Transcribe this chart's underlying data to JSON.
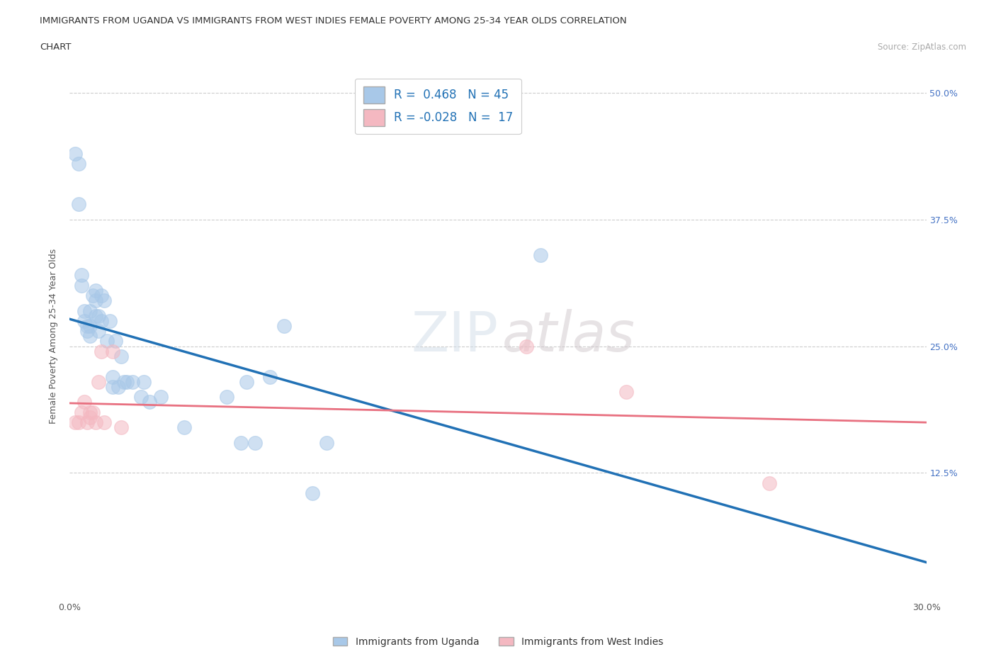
{
  "title_line1": "IMMIGRANTS FROM UGANDA VS IMMIGRANTS FROM WEST INDIES FEMALE POVERTY AMONG 25-34 YEAR OLDS CORRELATION",
  "title_line2": "CHART",
  "source": "Source: ZipAtlas.com",
  "ylabel": "Female Poverty Among 25-34 Year Olds",
  "xlim": [
    0.0,
    0.3
  ],
  "ylim": [
    0.0,
    0.52
  ],
  "xticks": [
    0.0,
    0.05,
    0.1,
    0.15,
    0.2,
    0.25,
    0.3
  ],
  "xticklabels_show": {
    "0.0": "0.0%",
    "0.30": "30.0%"
  },
  "yticks": [
    0.0,
    0.125,
    0.25,
    0.375,
    0.5
  ],
  "ytick_labels": {
    "0.0": "",
    "0.125": "12.5%",
    "0.25": "25.0%",
    "0.375": "37.5%",
    "0.5": "50.0%"
  },
  "uganda_color": "#a8c8e8",
  "uganda_color_line": "#2171b5",
  "west_indies_color": "#f4b8c1",
  "west_indies_color_line": "#e87080",
  "R_uganda": 0.468,
  "N_uganda": 45,
  "R_west_indies": -0.028,
  "N_west_indies": 17,
  "legend_label_uganda": "Immigrants from Uganda",
  "legend_label_west_indies": "Immigrants from West Indies",
  "watermark": "ZIPatlas",
  "uganda_x": [
    0.002,
    0.003,
    0.003,
    0.004,
    0.004,
    0.005,
    0.005,
    0.006,
    0.006,
    0.007,
    0.007,
    0.007,
    0.008,
    0.009,
    0.009,
    0.009,
    0.01,
    0.01,
    0.011,
    0.011,
    0.012,
    0.013,
    0.014,
    0.015,
    0.015,
    0.016,
    0.017,
    0.018,
    0.019,
    0.02,
    0.022,
    0.025,
    0.026,
    0.028,
    0.032,
    0.04,
    0.055,
    0.06,
    0.062,
    0.065,
    0.07,
    0.075,
    0.085,
    0.09,
    0.165
  ],
  "uganda_y": [
    0.44,
    0.43,
    0.39,
    0.32,
    0.31,
    0.285,
    0.275,
    0.27,
    0.265,
    0.285,
    0.27,
    0.26,
    0.3,
    0.305,
    0.295,
    0.28,
    0.265,
    0.28,
    0.3,
    0.275,
    0.295,
    0.255,
    0.275,
    0.21,
    0.22,
    0.255,
    0.21,
    0.24,
    0.215,
    0.215,
    0.215,
    0.2,
    0.215,
    0.195,
    0.2,
    0.17,
    0.2,
    0.155,
    0.215,
    0.155,
    0.22,
    0.27,
    0.105,
    0.155,
    0.34
  ],
  "west_indies_x": [
    0.002,
    0.003,
    0.004,
    0.005,
    0.006,
    0.007,
    0.007,
    0.008,
    0.009,
    0.01,
    0.011,
    0.012,
    0.015,
    0.018,
    0.16,
    0.195,
    0.245
  ],
  "west_indies_y": [
    0.175,
    0.175,
    0.185,
    0.195,
    0.175,
    0.18,
    0.185,
    0.185,
    0.175,
    0.215,
    0.245,
    0.175,
    0.245,
    0.17,
    0.25,
    0.205,
    0.115
  ]
}
